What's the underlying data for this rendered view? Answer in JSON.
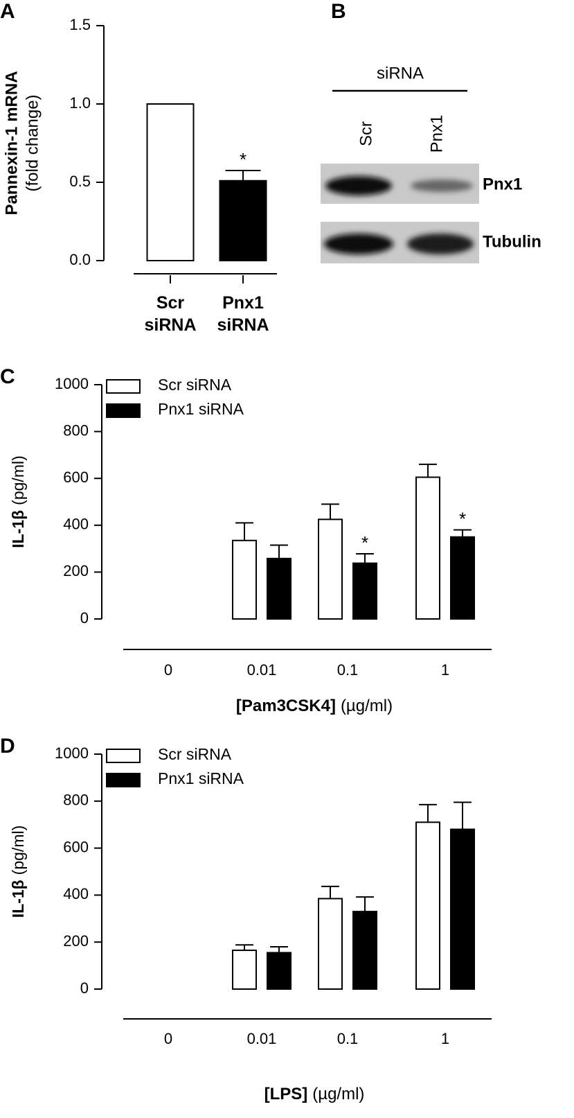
{
  "chart_data": [
    {
      "type": "bar",
      "panel": "A",
      "ylabel": "Pannexin-1 mRNA",
      "ylabel_unit": "(fold change)",
      "categories": [
        "Scr siRNA",
        "Pnx1 siRNA"
      ],
      "series": [
        {
          "values": [
            1.0,
            0.51
          ],
          "errors": [
            null,
            0.065
          ],
          "colors": [
            "#ffffff",
            "#000000"
          ],
          "marks": [
            null,
            "*"
          ]
        }
      ],
      "ylim": [
        0,
        1.5
      ],
      "yticks": [
        {
          "value": 0,
          "label": "0.0"
        },
        {
          "value": 0.5,
          "label": "0.5"
        },
        {
          "value": 1,
          "label": "1.0"
        },
        {
          "value": 1.5,
          "label": "1.5"
        }
      ]
    },
    {
      "type": "bar",
      "panel": "C",
      "ylabel": "IL-1β",
      "ylabel_unit": "(pg/ml)",
      "xlabel": "[Pam3CSK4]",
      "xlabel_unit": "(µg/ml)",
      "categories": [
        "0",
        "0.01",
        "0.1",
        "1"
      ],
      "series": [
        {
          "name": "Scr siRNA",
          "color": "#ffffff",
          "values": [
            null,
            335,
            425,
            605
          ],
          "errors": [
            null,
            75,
            65,
            55
          ],
          "marks": [
            null,
            null,
            null,
            null
          ]
        },
        {
          "name": "Pnx1 siRNA",
          "color": "#000000",
          "values": [
            null,
            258,
            238,
            350
          ],
          "errors": [
            null,
            57,
            40,
            30
          ],
          "marks": [
            null,
            null,
            "*",
            "*"
          ]
        }
      ],
      "ylim": [
        0,
        1000
      ],
      "yticks": [
        0,
        200,
        400,
        600,
        800,
        1000
      ]
    },
    {
      "type": "bar",
      "panel": "D",
      "ylabel": "IL-1β",
      "ylabel_unit": "(pg/ml)",
      "xlabel": "[LPS]",
      "xlabel_unit": "(µg/ml)",
      "categories": [
        "0",
        "0.01",
        "0.1",
        "1"
      ],
      "series": [
        {
          "name": "Scr siRNA",
          "color": "#ffffff",
          "values": [
            null,
            165,
            385,
            710
          ],
          "errors": [
            null,
            23,
            52,
            75
          ],
          "marks": [
            null,
            null,
            null,
            null
          ]
        },
        {
          "name": "Pnx1 siRNA",
          "color": "#000000",
          "values": [
            null,
            155,
            330,
            680
          ],
          "errors": [
            null,
            25,
            62,
            115
          ],
          "marks": [
            null,
            null,
            null,
            null
          ]
        }
      ],
      "ylim": [
        0,
        1000
      ],
      "yticks": [
        0,
        200,
        400,
        600,
        800,
        1000
      ]
    }
  ],
  "blot": {
    "panel": "B",
    "header": "siRNA",
    "lanes": [
      "Scr",
      "Pnx1"
    ],
    "rows": [
      "Pnx1",
      "Tubulin"
    ]
  }
}
